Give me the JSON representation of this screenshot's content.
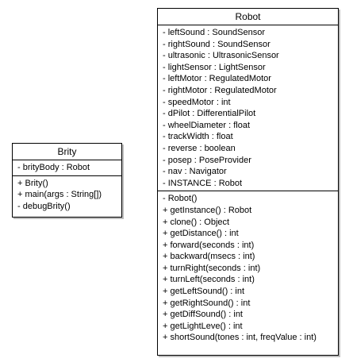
{
  "brity": {
    "name": "Brity",
    "attributes": [
      "- brityBody : Robot"
    ],
    "operations": [
      "+ Brity()",
      "+ main(args : String[])",
      "- debugBrity()"
    ]
  },
  "robot": {
    "name": "Robot",
    "attributes": [
      "- leftSound : SoundSensor",
      "- rightSound : SoundSensor",
      "- ultrasonic : UltrasonicSensor",
      "- lightSensor : LightSensor",
      "- leftMotor : RegulatedMotor",
      "- rightMotor : RegulatedMotor",
      "- speedMotor : int",
      "- dPilot : DifferentialPilot",
      "- wheelDiameter : float",
      "- trackWidth : float",
      "- reverse : boolean",
      "- posep : PoseProvider",
      "- nav : Navigator",
      "- INSTANCE : Robot"
    ],
    "operations": [
      "- Robot()",
      "+ getInstance() : Robot",
      "+ clone() : Object",
      "+ getDistance() : int",
      "+ forward(seconds : int)",
      "+ backward(msecs : int)",
      "+ turnRight(seconds : int)",
      "+ turnLeft(seconds : int)",
      "+ getLeftSound() : int",
      "+ getRightSound() : int",
      "+ getDiffSound() : int",
      "+ getLightLeve() : int",
      "+ shortSound(tones : int, freqValue : int)"
    ]
  }
}
